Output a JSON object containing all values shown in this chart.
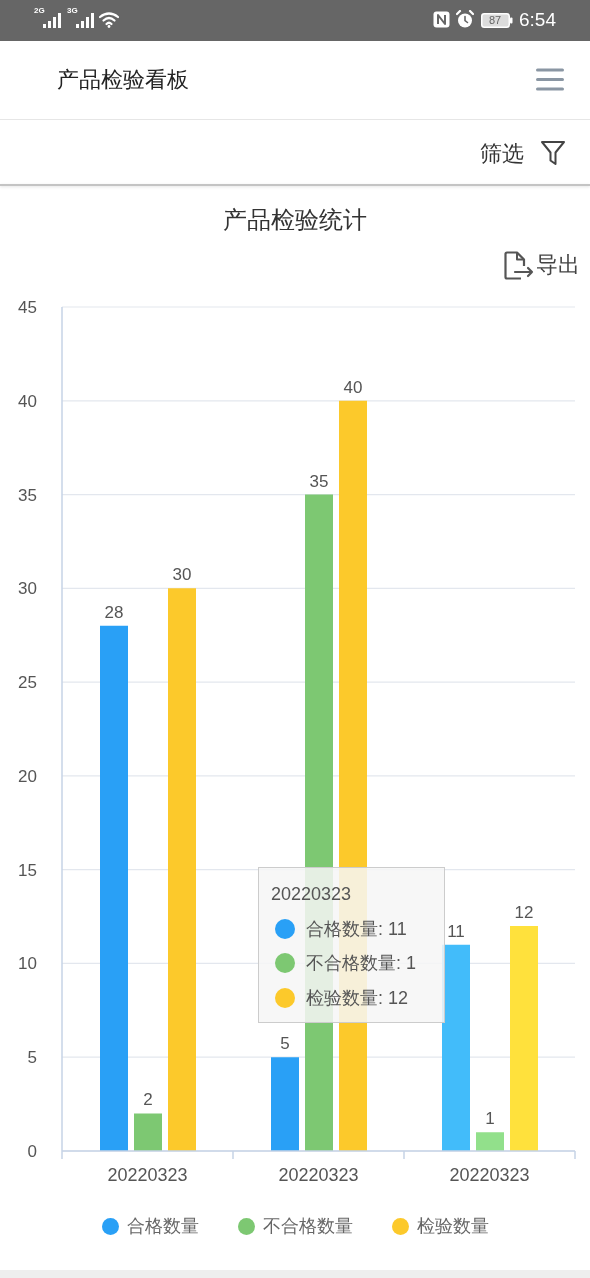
{
  "chart_data": {
    "type": "bar",
    "title": "产品检验统计",
    "categories": [
      "20220323",
      "20220323",
      "20220323"
    ],
    "series": [
      {
        "name": "合格数量",
        "color": "#29a0f6",
        "colors": [
          "#29a0f6",
          "#29a0f6",
          "#42bcfa"
        ],
        "values": [
          28,
          5,
          11
        ]
      },
      {
        "name": "不合格数量",
        "color": "#7dc872",
        "colors": [
          "#7dc872",
          "#7dc872",
          "#92e08b"
        ],
        "values": [
          2,
          35,
          1
        ]
      },
      {
        "name": "检验数量",
        "color": "#fcc92b",
        "colors": [
          "#fcc92b",
          "#fcc92b",
          "#ffe13c"
        ],
        "values": [
          30,
          40,
          12
        ]
      }
    ],
    "ylim": [
      0,
      45
    ],
    "yticks": [
      0,
      5,
      10,
      15,
      20,
      25,
      30,
      35,
      40,
      45
    ],
    "grid": "y",
    "legend": "bottom",
    "data_labels": true,
    "annotations": [
      "2G",
      "3G",
      "87",
      "6:54",
      "产品检验看板",
      "筛选",
      "导出",
      "20220323",
      "合格数量: 11",
      "不合格数量: 1",
      "检验数量: 12"
    ]
  }
}
